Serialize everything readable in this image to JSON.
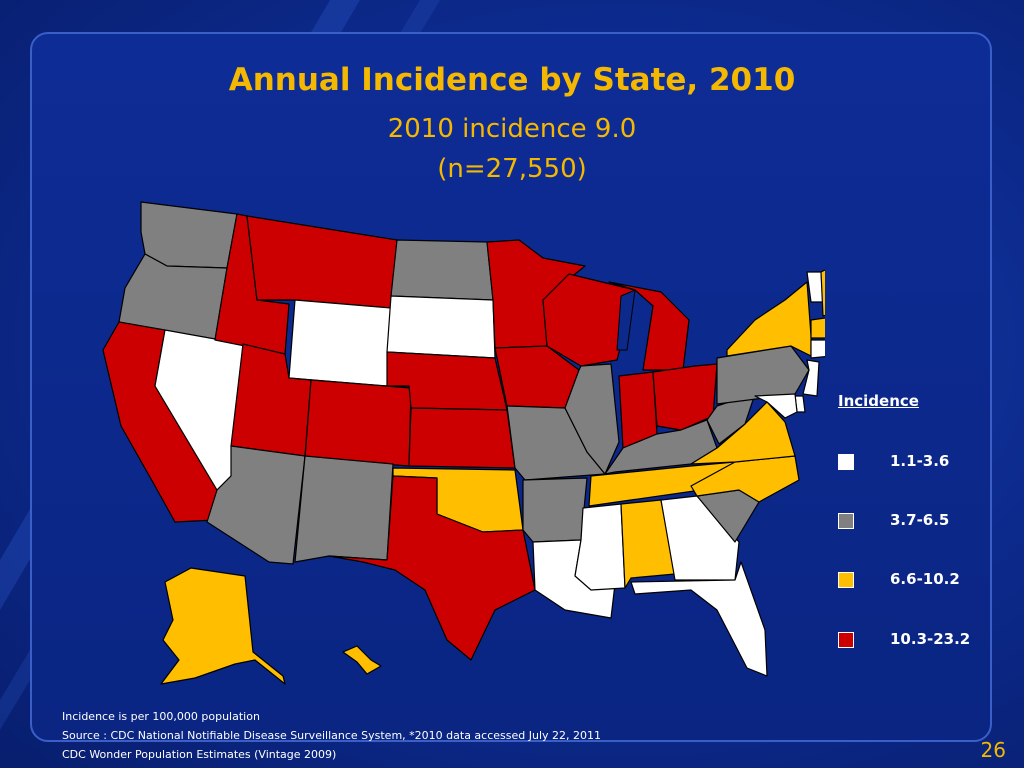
{
  "title": "Annual Incidence by State, 2010",
  "subtitle_line1": "2010 incidence 9.0",
  "subtitle_line2": "(n=27,550)",
  "legend": {
    "title": "Incidence",
    "items": [
      {
        "label": "1.1-3.6",
        "color": "#ffffff"
      },
      {
        "label": "3.7-6.5",
        "color": "#808080"
      },
      {
        "label": "6.6-10.2",
        "color": "#ffbf00"
      },
      {
        "label": "10.3-23.2",
        "color": "#cc0000"
      }
    ]
  },
  "map_data": {
    "categories": {
      "white": "1.1-3.6",
      "gray": "3.7-6.5",
      "gold": "6.6-10.2",
      "red": "10.3-23.2"
    },
    "states": {
      "WA": "gray",
      "OR": "gray",
      "CA": "red",
      "NV": "white",
      "ID": "red",
      "MT": "red",
      "WY": "white",
      "UT": "red",
      "AZ": "gray",
      "CO": "red",
      "NM": "gray",
      "ND": "gray",
      "SD": "white",
      "NE": "red",
      "KS": "red",
      "OK": "gold",
      "TX": "red",
      "MN": "red",
      "IA": "red",
      "MO": "gray",
      "AR": "gray",
      "LA": "white",
      "WI": "red",
      "IL": "gray",
      "MI": "red",
      "IN": "red",
      "OH": "red",
      "KY": "gray",
      "TN": "gold",
      "MS": "white",
      "AL": "gold",
      "GA": "white",
      "FL": "white",
      "SC": "gray",
      "NC": "gold",
      "VA": "gold",
      "WV": "gray",
      "PA": "gray",
      "NY": "gold",
      "VT": "white",
      "NH": "gold",
      "ME": "gold",
      "MA": "gold",
      "CT": "white",
      "RI": "gold",
      "NJ": "white",
      "DE": "white",
      "MD": "white",
      "AK": "gold",
      "HI": "gold"
    }
  },
  "footnotes": [
    "Incidence is per 100,000 population",
    "Source :  CDC National Notifiable Disease Surveillance System, *2010 data accessed July 22, 2011",
    "CDC  Wonder Population Estimates (Vintage 2009)"
  ],
  "slide_number": "26"
}
